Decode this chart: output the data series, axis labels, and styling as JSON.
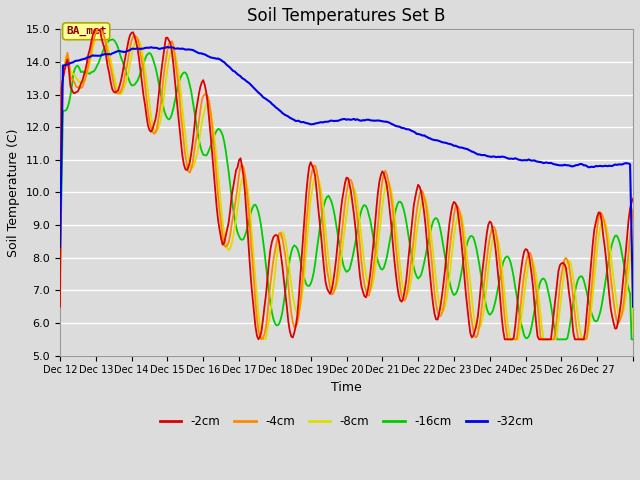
{
  "title": "Soil Temperatures Set B",
  "xlabel": "Time",
  "ylabel": "Soil Temperature (C)",
  "ylim": [
    5.0,
    15.0
  ],
  "yticks": [
    5.0,
    6.0,
    7.0,
    8.0,
    9.0,
    10.0,
    11.0,
    12.0,
    13.0,
    14.0,
    15.0
  ],
  "xlim_start": 0,
  "xlim_end": 384,
  "xtick_positions": [
    0,
    24,
    48,
    72,
    96,
    120,
    144,
    168,
    192,
    216,
    240,
    264,
    288,
    312,
    336,
    360,
    384
  ],
  "xtick_labels": [
    "Dec 12",
    "Dec 13",
    "Dec 14",
    "Dec 15",
    "Dec 16",
    "Dec 17",
    "Dec 18",
    "Dec 19",
    "Dec 20",
    "Dec 21",
    "Dec 22",
    "Dec 23",
    "Dec 24",
    "Dec 25",
    "Dec 26",
    "Dec 27",
    ""
  ],
  "colors": {
    "-2cm": "#dd0000",
    "-4cm": "#ff8800",
    "-8cm": "#dddd00",
    "-16cm": "#00cc00",
    "-32cm": "#0000ee"
  },
  "legend_labels": [
    "-2cm",
    "-4cm",
    "-8cm",
    "-16cm",
    "-32cm"
  ],
  "background_color": "#dcdcdc",
  "plot_bg_color": "#dcdcdc",
  "annotation_text": "BA_met",
  "annotation_color": "#8b0000",
  "annotation_bg": "#ffff99",
  "grid_color": "#ffffff",
  "title_fontsize": 12,
  "label_fontsize": 9,
  "tick_fontsize": 8
}
